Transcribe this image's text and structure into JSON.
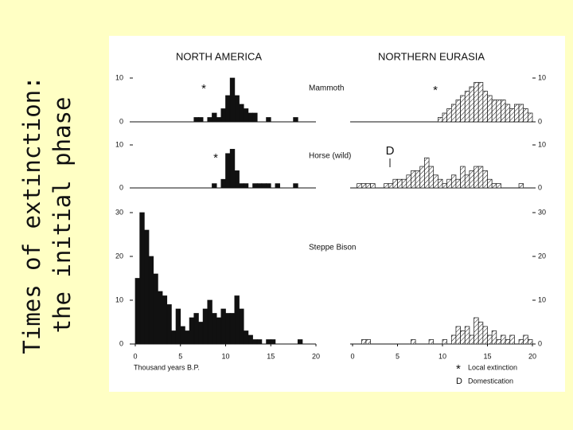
{
  "slide": {
    "title_lines": [
      "Times of extinction:",
      "the initial phase"
    ]
  },
  "figure": {
    "regions": [
      "NORTH AMERICA",
      "NORTHERN EURASIA"
    ],
    "species": [
      "Mammoth",
      "Horse (wild)",
      "Steppe Bison"
    ],
    "x_label": "Thousand years B.P.",
    "legend": [
      {
        "symbol": "*",
        "label": "Local extinction"
      },
      {
        "symbol": "D",
        "label": "Domestication"
      }
    ]
  },
  "chart_data": [
    {
      "type": "histogram",
      "region": 0,
      "species": 0,
      "pattern": "solid",
      "color": "#111111",
      "y_axis_side": "left",
      "bins": [
        6,
        6.5,
        7,
        7.5,
        8,
        8.5,
        9,
        9.5,
        10,
        10.5,
        11,
        11.5,
        12,
        12.5,
        13,
        13.5,
        14,
        14.5,
        15,
        15.5,
        16,
        16.5,
        17,
        17.5,
        18,
        18.5
      ],
      "values": [
        0,
        1,
        1,
        0,
        1,
        2,
        1,
        3,
        6,
        10,
        6,
        4,
        3,
        2,
        2,
        0,
        0,
        1,
        0,
        0,
        0,
        0,
        0,
        1,
        0
      ],
      "xlim": [
        0,
        20
      ],
      "ylim": [
        0,
        10
      ],
      "yticks": [
        0,
        10
      ],
      "annotations": [
        {
          "text": "*"
        }
      ]
    },
    {
      "type": "histogram",
      "region": 1,
      "species": 0,
      "pattern": "hatched",
      "color": "#111111",
      "y_axis_side": "right",
      "bins": [
        9,
        9.5,
        10,
        10.5,
        11,
        11.5,
        12,
        12.5,
        13,
        13.5,
        14,
        14.5,
        15,
        15.5,
        16,
        16.5,
        17,
        17.5,
        18,
        18.5,
        19,
        19.5,
        20
      ],
      "values": [
        0,
        1,
        2,
        3,
        4,
        5,
        6,
        7,
        8,
        9,
        9,
        7,
        6,
        5,
        5,
        5,
        4,
        3,
        4,
        4,
        3,
        2
      ],
      "xlim": [
        0,
        20
      ],
      "ylim": [
        0,
        10
      ],
      "yticks": [
        0,
        10
      ],
      "annotations": [
        {
          "text": "*"
        }
      ]
    },
    {
      "type": "histogram",
      "region": 0,
      "species": 1,
      "pattern": "solid",
      "color": "#111111",
      "y_axis_side": "left",
      "bins": [
        8,
        8.5,
        9,
        9.5,
        10,
        10.5,
        11,
        11.5,
        12,
        12.5,
        13,
        13.5,
        14,
        14.5,
        15,
        15.5,
        16,
        16.5,
        17,
        17.5,
        18,
        18.5
      ],
      "values": [
        0,
        1,
        0,
        2,
        8,
        9,
        4,
        1,
        1,
        0,
        1,
        1,
        1,
        1,
        0,
        1,
        0,
        0,
        0,
        1,
        0
      ],
      "xlim": [
        0,
        20
      ],
      "ylim": [
        0,
        10
      ],
      "yticks": [
        0,
        10
      ],
      "annotations": [
        {
          "text": "*"
        }
      ]
    },
    {
      "type": "histogram",
      "region": 1,
      "species": 1,
      "pattern": "hatched",
      "color": "#111111",
      "y_axis_side": "right",
      "bins": [
        0.5,
        1,
        1.5,
        2,
        2.5,
        3,
        3.5,
        4,
        4.5,
        5,
        5.5,
        6,
        6.5,
        7,
        7.5,
        8,
        8.5,
        9,
        9.5,
        10,
        10.5,
        11,
        11.5,
        12,
        12.5,
        13,
        13.5,
        14,
        14.5,
        15,
        15.5,
        16,
        16.5,
        17,
        17.5,
        18,
        18.5,
        19,
        19.5
      ],
      "values": [
        1,
        1,
        1,
        1,
        0,
        0,
        1,
        1,
        2,
        2,
        2,
        3,
        4,
        4,
        5,
        7,
        5,
        3,
        2,
        1,
        2,
        3,
        2,
        5,
        3,
        4,
        5,
        5,
        4,
        2,
        1,
        1,
        0,
        0,
        0,
        0,
        1,
        0
      ],
      "xlim": [
        0,
        20
      ],
      "ylim": [
        0,
        10
      ],
      "yticks": [
        0,
        10
      ],
      "annotations": [
        {
          "text": "D"
        }
      ]
    },
    {
      "type": "histogram",
      "region": 0,
      "species": 2,
      "pattern": "solid",
      "color": "#111111",
      "y_axis_side": "left",
      "bins": [
        0,
        0.5,
        1,
        1.5,
        2,
        2.5,
        3,
        3.5,
        4,
        4.5,
        5,
        5.5,
        6,
        6.5,
        7,
        7.5,
        8,
        8.5,
        9,
        9.5,
        10,
        10.5,
        11,
        11.5,
        12,
        12.5,
        13,
        13.5,
        14,
        14.5,
        15,
        15.5,
        16,
        16.5,
        17,
        17.5,
        18,
        18.5,
        19,
        19.5,
        20
      ],
      "values": [
        15,
        30,
        26,
        20,
        16,
        12,
        11,
        9,
        3,
        8,
        4,
        3,
        6,
        7,
        5,
        8,
        10,
        7,
        6,
        8,
        7,
        7,
        11,
        8,
        3,
        2,
        1,
        1,
        0,
        1,
        1,
        0,
        0,
        0,
        0,
        0,
        1,
        0,
        0,
        0
      ],
      "xlim": [
        0,
        20
      ],
      "ylim": [
        0,
        30
      ],
      "yticks": [
        0,
        10,
        20,
        30
      ],
      "xticks": [
        0,
        5,
        10,
        15,
        20
      ]
    },
    {
      "type": "histogram",
      "region": 1,
      "species": 2,
      "pattern": "hatched",
      "color": "#111111",
      "y_axis_side": "right",
      "bins": [
        0,
        0.5,
        1,
        1.5,
        2,
        2.5,
        3,
        3.5,
        4,
        4.5,
        5,
        5.5,
        6,
        6.5,
        7,
        7.5,
        8,
        8.5,
        9,
        9.5,
        10,
        10.5,
        11,
        11.5,
        12,
        12.5,
        13,
        13.5,
        14,
        14.5,
        15,
        15.5,
        16,
        16.5,
        17,
        17.5,
        18,
        18.5,
        19,
        19.5,
        20
      ],
      "values": [
        0,
        0,
        1,
        1,
        0,
        0,
        0,
        0,
        0,
        0,
        0,
        0,
        0,
        1,
        0,
        0,
        0,
        1,
        0,
        0,
        1,
        0,
        2,
        4,
        3,
        4,
        2,
        6,
        5,
        4,
        2,
        3,
        1,
        2,
        1,
        2,
        0,
        1,
        2,
        1
      ],
      "xlim": [
        0,
        20
      ],
      "ylim": [
        0,
        30
      ],
      "yticks": [
        0,
        10,
        20,
        30
      ],
      "xticks": [
        0,
        5,
        10,
        15,
        20
      ]
    }
  ]
}
